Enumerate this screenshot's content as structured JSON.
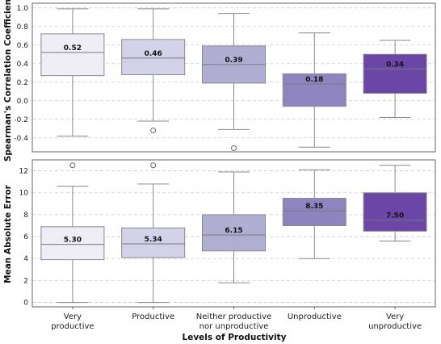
{
  "chart_data": [
    {
      "type": "box",
      "panel": "top",
      "ylabel": "Spearman's Correlation Coefficient",
      "ylim": [
        -0.55,
        1.05
      ],
      "yticks": [
        -0.4,
        -0.2,
        0.0,
        0.2,
        0.4,
        0.6,
        0.8,
        1.0
      ],
      "ytick_labels": [
        "-0.4",
        "-0.2",
        "0.0",
        "0.2",
        "0.4",
        "0.6",
        "0.8",
        "1.0"
      ],
      "grid": "horizontal dashed",
      "categories": [
        "Very productive",
        "Productive",
        "Neither productive nor unproductive",
        "Unproductive",
        "Very unproductive"
      ],
      "boxes": [
        {
          "whisker_low": -0.38,
          "q1": 0.27,
          "median": 0.52,
          "q3": 0.72,
          "whisker_high": 0.99,
          "outliers": [],
          "median_label": "0.52"
        },
        {
          "whisker_low": -0.22,
          "q1": 0.28,
          "median": 0.46,
          "q3": 0.66,
          "whisker_high": 0.99,
          "outliers": [
            -0.32
          ],
          "median_label": "0.46"
        },
        {
          "whisker_low": -0.31,
          "q1": 0.19,
          "median": 0.39,
          "q3": 0.59,
          "whisker_high": 0.94,
          "outliers": [
            -0.51
          ],
          "median_label": "0.39"
        },
        {
          "whisker_low": -0.5,
          "q1": -0.06,
          "median": 0.18,
          "q3": 0.29,
          "whisker_high": 0.73,
          "outliers": [],
          "median_label": "0.18"
        },
        {
          "whisker_low": -0.18,
          "q1": 0.08,
          "median": 0.34,
          "q3": 0.5,
          "whisker_high": 0.65,
          "outliers": [],
          "median_label": "0.34"
        }
      ]
    },
    {
      "type": "box",
      "panel": "bottom",
      "ylabel": "Mean Absolute Error",
      "xlabel": "Levels of Productivity",
      "ylim": [
        -0.4,
        13.0
      ],
      "yticks": [
        0,
        2,
        4,
        6,
        8,
        10,
        12
      ],
      "ytick_labels": [
        "0",
        "2",
        "4",
        "6",
        "8",
        "10",
        "12"
      ],
      "grid": "horizontal dashed",
      "categories": [
        "Very productive",
        "Productive",
        "Neither productive nor unproductive",
        "Unproductive",
        "Very unproductive"
      ],
      "category_labels": [
        [
          "Very",
          "productive"
        ],
        [
          "Productive"
        ],
        [
          "Neither productive",
          "nor unproductive"
        ],
        [
          "Unproductive"
        ],
        [
          "Very",
          "unproductive"
        ]
      ],
      "boxes": [
        {
          "whisker_low": 0.0,
          "q1": 3.9,
          "median": 5.3,
          "q3": 6.9,
          "whisker_high": 10.6,
          "outliers": [
            12.5
          ],
          "median_label": "5.30"
        },
        {
          "whisker_low": 0.0,
          "q1": 4.1,
          "median": 5.34,
          "q3": 6.8,
          "whisker_high": 10.8,
          "outliers": [
            12.5
          ],
          "median_label": "5.34"
        },
        {
          "whisker_low": 1.8,
          "q1": 4.7,
          "median": 6.15,
          "q3": 8.0,
          "whisker_high": 11.9,
          "outliers": [],
          "median_label": "6.15"
        },
        {
          "whisker_low": 4.0,
          "q1": 7.0,
          "median": 8.35,
          "q3": 9.5,
          "whisker_high": 12.1,
          "outliers": [],
          "median_label": "8.35"
        },
        {
          "whisker_low": 5.6,
          "q1": 6.5,
          "median": 7.5,
          "q3": 10.0,
          "whisker_high": 12.5,
          "outliers": [],
          "median_label": "7.50"
        }
      ]
    }
  ],
  "colors": {
    "fills": [
      "#efedf5",
      "#d3d2e9",
      "#b1aed3",
      "#8e84c0",
      "#6b46a6"
    ],
    "frame": "#666666",
    "grid": "#cccccc",
    "whisker": "#8a8a8a"
  }
}
